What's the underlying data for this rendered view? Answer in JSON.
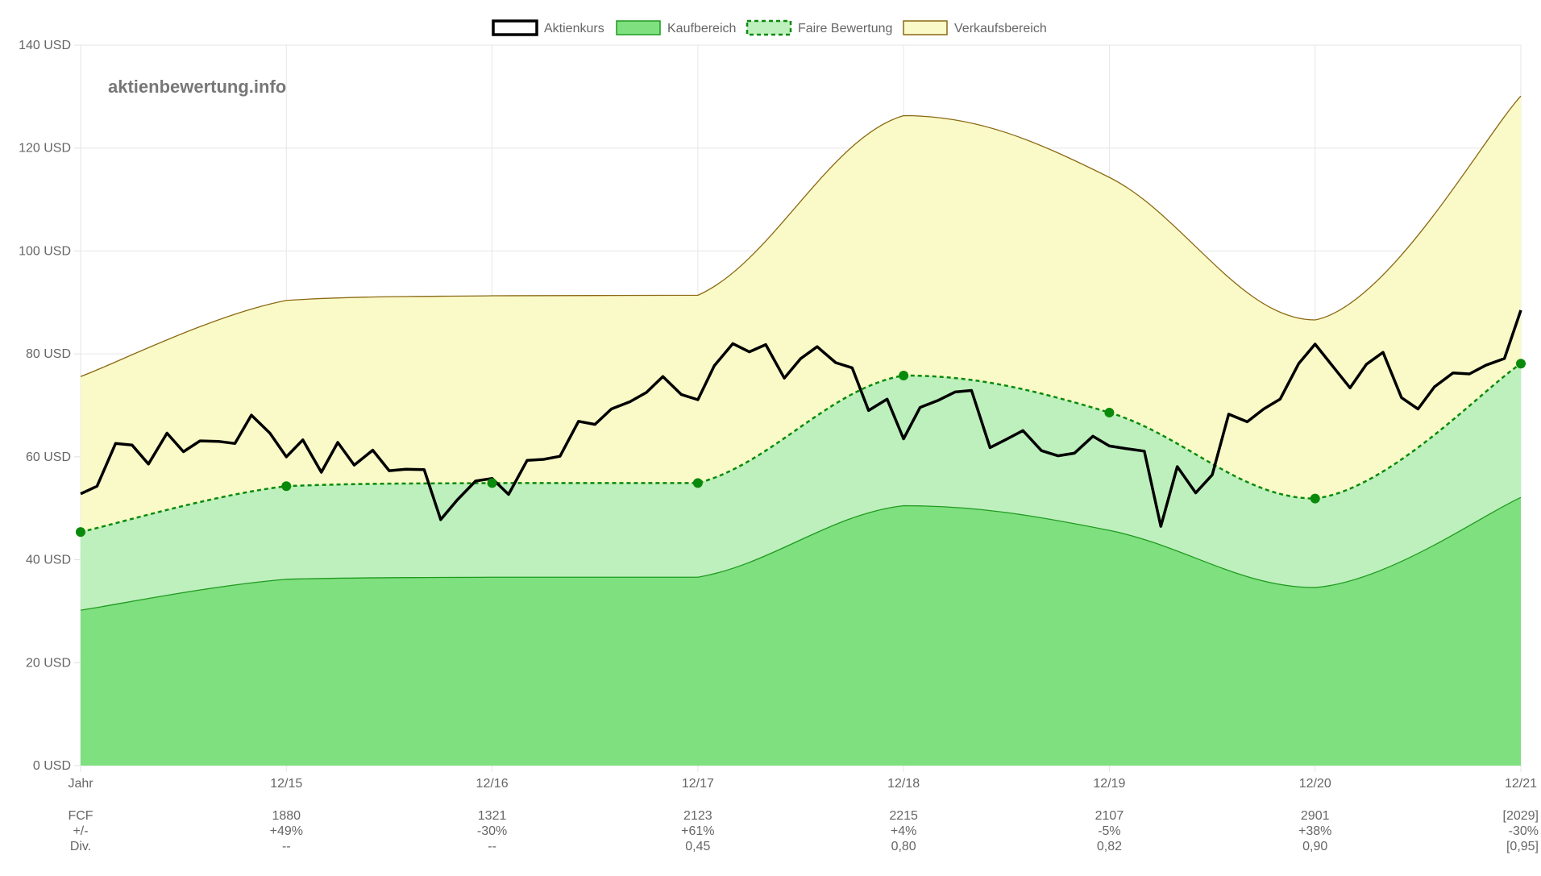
{
  "watermark": "aktienbewertung.info",
  "colors": {
    "price": "#000000",
    "buy_fill": "#7fe07f",
    "buy_stroke": "#1f9a1f",
    "fair_fill": "#bdf0bd",
    "fair_stroke": "#0a8a0a",
    "sell_fill": "#fafac8",
    "sell_stroke": "#8b6914"
  },
  "chart_data": {
    "type": "area",
    "legend": [
      "Aktienkurs",
      "Kaufbereich",
      "Faire Bewertung",
      "Verkaufsbereich"
    ],
    "legend_position": "top",
    "y_axis": {
      "min": 0,
      "max": 140,
      "ticks": [
        0,
        20,
        40,
        60,
        80,
        100,
        120,
        140
      ],
      "tick_labels": [
        "0 USD",
        "20 USD",
        "40 USD",
        "60 USD",
        "80 USD",
        "100 USD",
        "120 USD",
        "140 USD"
      ]
    },
    "x_axis": {
      "categories": [
        "Jahr",
        "12/15",
        "12/16",
        "12/17",
        "12/18",
        "12/19",
        "12/20",
        "12/21"
      ]
    },
    "grid": true,
    "series": [
      {
        "name": "Kaufbereich",
        "values": [
          30.2,
          36.2,
          36.6,
          36.6,
          50.5,
          45.7,
          34.6,
          52.1
        ]
      },
      {
        "name": "Faire Bewertung",
        "values": [
          45.4,
          54.3,
          54.9,
          54.9,
          75.8,
          68.6,
          51.9,
          78.1
        ]
      },
      {
        "name": "Verkaufsbereich",
        "values": [
          75.6,
          90.4,
          91.3,
          91.4,
          126.3,
          114.3,
          86.6,
          130.1
        ]
      },
      {
        "name": "Aktienkurs",
        "x": [
          0,
          0.08,
          0.17,
          0.25,
          0.33,
          0.42,
          0.5,
          0.58,
          0.67,
          0.75,
          0.83,
          0.92,
          1.0,
          1.08,
          1.17,
          1.25,
          1.33,
          1.42,
          1.5,
          1.58,
          1.67,
          1.75,
          1.83,
          1.92,
          2.0,
          2.08,
          2.17,
          2.25,
          2.33,
          2.42,
          2.5,
          2.58,
          2.67,
          2.75,
          2.83,
          2.92,
          3.0,
          3.08,
          3.17,
          3.25,
          3.33,
          3.42,
          3.5,
          3.58,
          3.67,
          3.75,
          3.83,
          3.92,
          4.0,
          4.08,
          4.17,
          4.25,
          4.33,
          4.42,
          4.5,
          4.58,
          4.67,
          4.75,
          4.83,
          4.92,
          5.0,
          5.08,
          5.17,
          5.25,
          5.33,
          5.42,
          5.5,
          5.58,
          5.67,
          5.75,
          5.83,
          5.92,
          6.0,
          6.08,
          6.17,
          6.25,
          6.33,
          6.42,
          6.5,
          6.58,
          6.67,
          6.75,
          6.83,
          6.92,
          7.0
        ],
        "values": [
          52.8,
          54.3,
          62.6,
          62.3,
          58.6,
          64.6,
          61.0,
          63.1,
          63.0,
          62.6,
          68.1,
          64.6,
          60.0,
          63.3,
          57.0,
          62.8,
          58.4,
          61.3,
          57.3,
          57.6,
          57.5,
          47.8,
          51.6,
          55.3,
          55.8,
          52.7,
          59.3,
          59.5,
          60.1,
          66.9,
          66.3,
          69.3,
          70.7,
          72.5,
          75.6,
          72.1,
          71.1,
          77.7,
          82.0,
          80.4,
          81.8,
          75.3,
          79.1,
          81.4,
          78.3,
          77.3,
          69.0,
          71.2,
          63.5,
          69.6,
          71.0,
          72.6,
          72.9,
          61.8,
          63.4,
          65.1,
          61.2,
          60.2,
          60.7,
          64.0,
          62.1,
          61.6,
          61.1,
          46.5,
          58.1,
          53.0,
          56.5,
          68.3,
          66.8,
          69.3,
          71.2,
          78.1,
          81.9,
          77.9,
          73.4,
          78.0,
          80.3,
          71.5,
          69.3,
          73.6,
          76.3,
          76.1,
          77.8,
          79.1,
          88.5
        ]
      }
    ]
  },
  "table": {
    "rows": [
      {
        "label": "FCF",
        "values": [
          "1880",
          "1321",
          "2123",
          "2215",
          "2107",
          "2901",
          "[2029]"
        ]
      },
      {
        "label": "+/-",
        "values": [
          "+49%",
          "-30%",
          "+61%",
          "+4%",
          "-5%",
          "+38%",
          "-30%"
        ]
      },
      {
        "label": "Div.",
        "values": [
          "--",
          "--",
          "0,45",
          "0,80",
          "0,82",
          "0,90",
          "[0,95]"
        ]
      }
    ]
  }
}
